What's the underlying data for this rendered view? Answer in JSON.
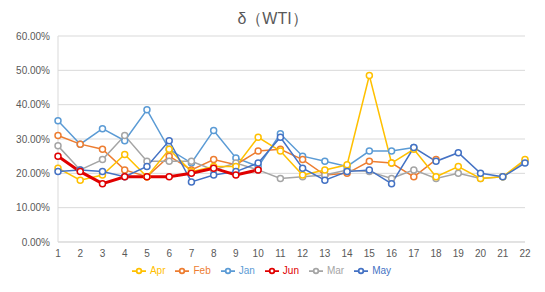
{
  "chart_data": {
    "type": "line",
    "title": "δ（WTI）",
    "categories": [
      "1",
      "2",
      "3",
      "4",
      "5",
      "6",
      "7",
      "8",
      "9",
      "10",
      "11",
      "12",
      "13",
      "14",
      "15",
      "16",
      "17",
      "18",
      "19",
      "20",
      "21",
      "22"
    ],
    "ylim": [
      0,
      60
    ],
    "yticks": [
      {
        "value": 0,
        "label": "0.00%"
      },
      {
        "value": 10,
        "label": "10.00%"
      },
      {
        "value": 20,
        "label": "20.00%"
      },
      {
        "value": 30,
        "label": "30.00%"
      },
      {
        "value": 40,
        "label": "40.00%"
      },
      {
        "value": 50,
        "label": "50.00%"
      },
      {
        "value": 60,
        "label": "60.00%"
      }
    ],
    "grid": true,
    "legend": "bottom",
    "marker": "circle",
    "series": [
      {
        "name": "Jan",
        "color": "#5b9bd5",
        "values": [
          35.3,
          28.5,
          33,
          29.5,
          38.5,
          27,
          23,
          32.5,
          24.5,
          22,
          31.5,
          25,
          23.5,
          22,
          26.5,
          26.5,
          27.5,
          null,
          null,
          null,
          null,
          null
        ]
      },
      {
        "name": "Feb",
        "color": "#ed7d31",
        "values": [
          31,
          28.5,
          27,
          21,
          19,
          25,
          21,
          24,
          22.5,
          26.5,
          27,
          24,
          19.5,
          20,
          23.5,
          23,
          19,
          24,
          null,
          null,
          null,
          null
        ]
      },
      {
        "name": "Mar",
        "color": "#a5a5a5",
        "values": [
          28,
          21,
          24,
          31,
          23.5,
          23.5,
          23.5,
          21,
          23,
          21,
          18.5,
          19,
          19.5,
          21,
          20.5,
          18.5,
          21,
          18.5,
          20,
          18.5,
          19,
          23.5
        ]
      },
      {
        "name": "Apr",
        "color": "#ffc000",
        "values": [
          21.5,
          18,
          19.5,
          25.5,
          19,
          27,
          20.5,
          22,
          22,
          30.5,
          26.5,
          19.5,
          21,
          22.5,
          48.5,
          23,
          27,
          19,
          22,
          18.5,
          19,
          24
        ]
      },
      {
        "name": "May",
        "color": "#4472c4",
        "values": [
          20.5,
          21,
          20.5,
          19,
          22,
          29.5,
          17.5,
          19.5,
          20.5,
          23,
          30.5,
          21.5,
          18,
          20.5,
          21,
          17,
          27.5,
          23.5,
          26,
          20,
          19,
          23
        ]
      },
      {
        "name": "Jun",
        "color": "#e00000",
        "values": [
          25,
          20.5,
          17,
          19,
          19,
          19,
          20,
          21.5,
          19.5,
          21,
          null,
          null,
          null,
          null,
          null,
          null,
          null,
          null,
          null,
          null,
          null,
          null
        ]
      }
    ]
  }
}
